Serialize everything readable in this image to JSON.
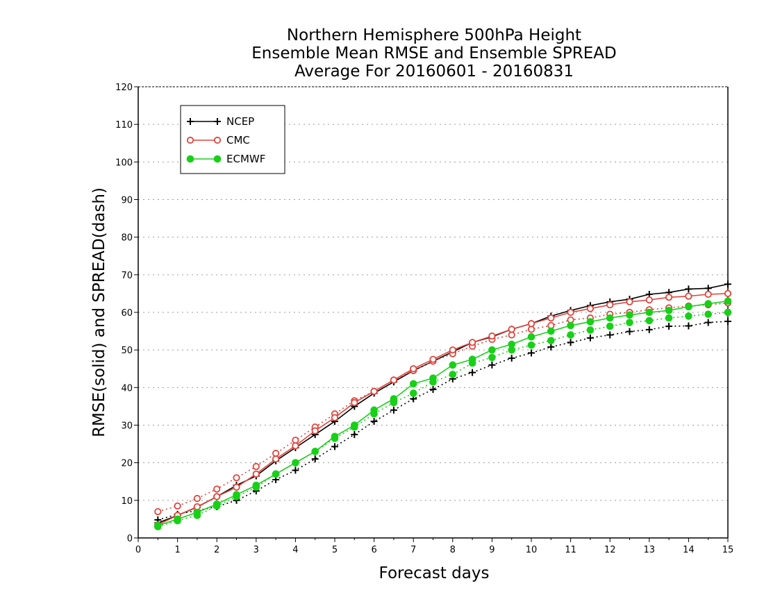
{
  "title_lines": [
    "Northern Hemisphere 500hPa Height",
    "Ensemble Mean RMSE and Ensemble SPREAD",
    "Average For 20160601 - 20160831"
  ],
  "chart_data": {
    "type": "line",
    "xlabel": "Forecast days",
    "ylabel": "RMSE(solid) and SPREAD(dash)",
    "xlim": [
      0,
      15
    ],
    "ylim": [
      0,
      120
    ],
    "xticks": [
      0,
      1,
      2,
      3,
      4,
      5,
      6,
      7,
      8,
      9,
      10,
      11,
      12,
      13,
      14,
      15
    ],
    "yticks": [
      0,
      10,
      20,
      30,
      40,
      50,
      60,
      70,
      80,
      90,
      100,
      110,
      120
    ],
    "grid": true,
    "legend_position": "top-left",
    "x": [
      0.5,
      1,
      1.5,
      2,
      2.5,
      3,
      3.5,
      4,
      4.5,
      5,
      5.5,
      6,
      6.5,
      7,
      7.5,
      8,
      8.5,
      9,
      9.5,
      10,
      10.5,
      11,
      11.5,
      12,
      12.5,
      13,
      13.5,
      14,
      14.5,
      15
    ],
    "series": [
      {
        "name": "NCEP",
        "color": "#000000",
        "marker": "plus",
        "rmse": [
          4.0,
          6.0,
          8.2,
          11.0,
          14.0,
          16.5,
          20.5,
          24.0,
          27.5,
          31.0,
          35.0,
          38.5,
          41.5,
          44.5,
          47.0,
          49.5,
          52.0,
          53.5,
          55.5,
          57.0,
          59.0,
          60.5,
          61.8,
          62.8,
          63.5,
          64.8,
          65.3,
          66.2,
          66.4,
          67.5
        ],
        "spread": [
          4.8,
          6.3,
          7.3,
          8.3,
          10.0,
          12.5,
          15.5,
          18.0,
          21.0,
          24.3,
          27.5,
          31.0,
          34.0,
          37.0,
          39.5,
          42.3,
          44.0,
          46.0,
          47.8,
          49.2,
          50.8,
          52.0,
          53.2,
          54.0,
          54.9,
          55.4,
          56.3,
          56.4,
          57.3,
          57.6
        ]
      },
      {
        "name": "CMC",
        "color": "#e0443c",
        "marker": "open-circle",
        "rmse": [
          3.5,
          6.0,
          8.3,
          11.0,
          13.5,
          17.0,
          21.0,
          24.5,
          28.5,
          32.0,
          36.0,
          39.0,
          42.0,
          45.0,
          47.5,
          50.0,
          52.0,
          53.7,
          55.5,
          57.0,
          58.5,
          60.0,
          61.0,
          62.0,
          62.8,
          63.3,
          64.0,
          64.3,
          64.8,
          65.0
        ],
        "spread": [
          7.0,
          8.5,
          10.5,
          13.0,
          16.0,
          19.0,
          22.5,
          26.0,
          29.5,
          33.0,
          36.5,
          39.0,
          42.0,
          44.5,
          47.0,
          49.0,
          51.0,
          52.8,
          54.0,
          55.5,
          56.5,
          58.0,
          58.5,
          59.5,
          60.0,
          60.7,
          61.2,
          61.7,
          62.0,
          62.5
        ]
      },
      {
        "name": "ECMWF",
        "color": "#18d018",
        "marker": "filled-circle",
        "rmse": [
          3.3,
          5.0,
          6.8,
          9.0,
          11.5,
          14.0,
          17.0,
          20.0,
          23.0,
          27.0,
          30.0,
          34.0,
          37.0,
          41.0,
          42.5,
          46.0,
          47.5,
          50.0,
          51.5,
          53.5,
          55.0,
          56.5,
          57.5,
          58.5,
          59.3,
          60.0,
          60.5,
          61.5,
          62.3,
          63.0
        ],
        "spread": [
          3.0,
          4.6,
          6.0,
          8.5,
          11.0,
          13.5,
          17.0,
          20.0,
          23.0,
          26.5,
          29.5,
          33.0,
          36.0,
          38.5,
          41.5,
          43.5,
          46.5,
          48.0,
          50.0,
          51.3,
          52.5,
          54.0,
          55.3,
          56.3,
          57.3,
          57.8,
          58.5,
          59.0,
          59.5,
          60.0
        ]
      }
    ]
  }
}
